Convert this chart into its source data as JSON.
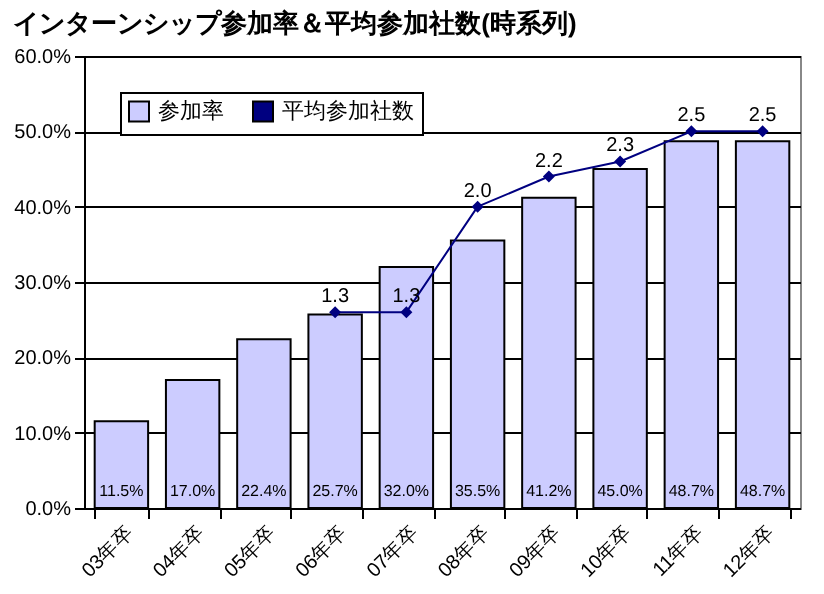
{
  "chart_data": {
    "type": "bar",
    "title": "インターンシップ参加率＆平均参加社数(時系列)",
    "categories": [
      "03年卒",
      "04年卒",
      "05年卒",
      "06年卒",
      "07年卒",
      "08年卒",
      "09年卒",
      "10年卒",
      "11年卒",
      "12年卒"
    ],
    "series": [
      {
        "name": "参加率",
        "color": "#ccccff",
        "values": [
          11.5,
          17.0,
          22.4,
          25.7,
          32.0,
          35.5,
          41.2,
          45.0,
          48.7,
          48.7
        ],
        "value_labels": [
          "11.5%",
          "17.0%",
          "22.4%",
          "25.7%",
          "32.0%",
          "35.5%",
          "41.2%",
          "45.0%",
          "48.7%",
          "48.7%"
        ]
      },
      {
        "name": "平均参加社数",
        "type": "line",
        "axis": "y2",
        "color": "#000080",
        "values": [
          null,
          null,
          null,
          1.3,
          1.3,
          2.0,
          2.2,
          2.3,
          2.5,
          2.5
        ],
        "value_labels": [
          null,
          null,
          null,
          "1.3",
          "1.3",
          "2.0",
          "2.2",
          "2.3",
          "2.5",
          "2.5"
        ]
      }
    ],
    "ylim": [
      0,
      60
    ],
    "yticks": [
      {
        "value": 0,
        "label": "0.0%"
      },
      {
        "value": 10,
        "label": "10.0%"
      },
      {
        "value": 20,
        "label": "20.0%"
      },
      {
        "value": 30,
        "label": "30.0%"
      },
      {
        "value": 40,
        "label": "40.0%"
      },
      {
        "value": 50,
        "label": "50.0%"
      },
      {
        "value": 60,
        "label": "60.0%"
      }
    ],
    "y2lim": [
      0,
      3
    ],
    "grid": "y",
    "legend": "top left",
    "marker": "diamond",
    "line_style": "solid"
  }
}
